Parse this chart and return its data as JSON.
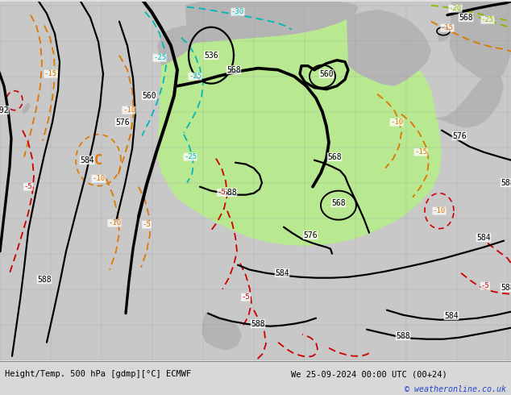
{
  "title_left": "Height/Temp. 500 hPa [gdmp][°C] ECMWF",
  "title_right": "We 25-09-2024 00:00 UTC (00+24)",
  "copyright": "© weatheronline.co.uk",
  "ocean_color": "#c8c8c8",
  "land_grey_color": "#b4b4b4",
  "green_color": "#b8e890",
  "figsize": [
    6.34,
    4.9
  ],
  "dpi": 100,
  "bottom_bg": "#e0e0e0",
  "title_fontsize": 7.5,
  "copyright_color": "#2244cc",
  "black_lw": 1.6,
  "thick_lw": 2.4
}
